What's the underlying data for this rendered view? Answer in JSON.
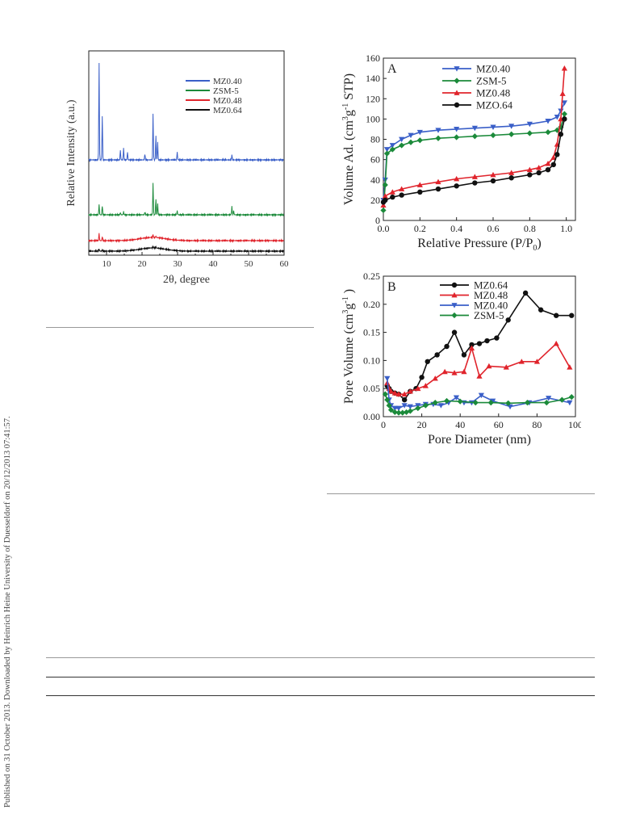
{
  "sidebar_note": "Published on 31 October 2013. Downloaded by Heinrich Heine University of Duesseldorf on 20/12/2013 07:41:57.",
  "figures": {
    "xrd": {
      "colors": {
        "MZ0.40": "#3a5fc8",
        "ZSM-5": "#1b8a3a",
        "MZ0.48": "#e0242c",
        "MZ0.64": "#111111"
      }
    },
    "iso_panel": "A",
    "pore_panel": "B"
  },
  "chart_data": [
    {
      "type": "line",
      "xlabel": "2θ, degree",
      "ylabel": "Relative Intensity (a.u.)",
      "xlim": [
        5,
        60
      ],
      "x_ticks": [
        "10",
        "20",
        "30",
        "40",
        "50",
        "60"
      ],
      "legend_position": "top-right",
      "series": [
        {
          "name": "MZ0.40",
          "color": "#3a5fc8",
          "peaks": [
            [
              7.9,
              1.0
            ],
            [
              8.8,
              0.45
            ],
            [
              13.9,
              0.1
            ],
            [
              14.8,
              0.12
            ],
            [
              15.9,
              0.08
            ],
            [
              20.8,
              0.06
            ],
            [
              23.1,
              0.47
            ],
            [
              23.9,
              0.25
            ],
            [
              24.4,
              0.18
            ],
            [
              29.9,
              0.08
            ],
            [
              45.3,
              0.05
            ]
          ]
        },
        {
          "name": "ZSM-5",
          "color": "#1b8a3a",
          "peaks": [
            [
              7.9,
              0.18
            ],
            [
              8.8,
              0.16
            ],
            [
              13.9,
              0.04
            ],
            [
              14.8,
              0.05
            ],
            [
              20.8,
              0.05
            ],
            [
              23.1,
              0.55
            ],
            [
              23.9,
              0.28
            ],
            [
              24.4,
              0.2
            ],
            [
              29.9,
              0.07
            ],
            [
              45.3,
              0.14
            ],
            [
              45.8,
              0.07
            ]
          ]
        },
        {
          "name": "MZ0.48",
          "color": "#e0242c",
          "peaks": [
            [
              7.9,
              0.18
            ],
            [
              8.8,
              0.1
            ],
            [
              23.1,
              0.07
            ],
            [
              23.9,
              0.04
            ]
          ]
        },
        {
          "name": "MZ0.64",
          "color": "#111111",
          "peaks": [
            [
              7.9,
              0.07
            ],
            [
              8.8,
              0.04
            ],
            [
              23.1,
              0.04
            ],
            [
              23.9,
              0.03
            ]
          ]
        }
      ]
    },
    {
      "type": "line",
      "panel": "A",
      "xlabel": "Relative Pressure (P/P",
      "xlabel_sub": "0",
      "xlabel_end": ")",
      "ylabel": "Volume Ad. (cm",
      "ylabel_sup": "3",
      "ylabel_mid": "g",
      "ylabel_sup2": "-1",
      "ylabel_end": "STP)",
      "xlim": [
        0.0,
        1.05
      ],
      "ylim": [
        0,
        160
      ],
      "x_ticks": [
        0.0,
        0.2,
        0.4,
        0.6,
        0.8,
        1.0
      ],
      "x_tick_labels": [
        "0.0",
        "0.2",
        "0.4",
        "0.6",
        "0.8",
        "1.0"
      ],
      "y_ticks": [
        0,
        20,
        40,
        60,
        80,
        100,
        120,
        140,
        160
      ],
      "legend_position": "top-center",
      "series": [
        {
          "name": "MZ0.40",
          "color": "#3a5fc8",
          "marker": "tri-down",
          "x": [
            0.0,
            0.01,
            0.02,
            0.05,
            0.1,
            0.15,
            0.2,
            0.3,
            0.4,
            0.5,
            0.6,
            0.7,
            0.8,
            0.9,
            0.95,
            0.97,
            0.99
          ],
          "y": [
            20,
            40,
            70,
            74,
            80,
            84,
            87,
            89,
            90,
            91,
            92,
            93,
            95,
            98,
            102,
            108,
            116
          ]
        },
        {
          "name": "ZSM-5",
          "color": "#1b8a3a",
          "marker": "diamond",
          "x": [
            0.0,
            0.01,
            0.02,
            0.05,
            0.1,
            0.15,
            0.2,
            0.3,
            0.4,
            0.5,
            0.6,
            0.7,
            0.8,
            0.9,
            0.95,
            0.97,
            0.99
          ],
          "y": [
            10,
            35,
            66,
            70,
            74,
            77,
            79,
            81,
            82,
            83,
            84,
            85,
            86,
            87,
            89,
            92,
            105
          ]
        },
        {
          "name": "MZ0.48",
          "color": "#e0242c",
          "marker": "tri-up",
          "x": [
            0.0,
            0.01,
            0.05,
            0.1,
            0.2,
            0.3,
            0.4,
            0.5,
            0.6,
            0.7,
            0.8,
            0.85,
            0.9,
            0.93,
            0.95,
            0.97,
            0.98,
            0.99
          ],
          "y": [
            15,
            24,
            28,
            31,
            35,
            38,
            41,
            43,
            45,
            47,
            50,
            52,
            56,
            62,
            75,
            100,
            125,
            150
          ]
        },
        {
          "name": "MZO.64",
          "color": "#111111",
          "marker": "circle",
          "x": [
            0.0,
            0.01,
            0.05,
            0.1,
            0.2,
            0.3,
            0.4,
            0.5,
            0.6,
            0.7,
            0.8,
            0.85,
            0.9,
            0.93,
            0.95,
            0.97,
            0.99
          ],
          "y": [
            18,
            20,
            23,
            25,
            28,
            31,
            34,
            37,
            39,
            42,
            45,
            47,
            50,
            55,
            65,
            85,
            100
          ]
        }
      ]
    },
    {
      "type": "line",
      "panel": "B",
      "xlabel": "Pore Diameter (nm)",
      "ylabel": "Pore Volume (cm",
      "ylabel_sup": "3",
      "ylabel_mid": "g",
      "ylabel_sup2": "-1",
      "ylabel_end": ")",
      "xlim": [
        0,
        100
      ],
      "ylim": [
        0,
        0.25
      ],
      "x_ticks": [
        0,
        20,
        40,
        60,
        80,
        100
      ],
      "y_ticks": [
        0.0,
        0.05,
        0.1,
        0.15,
        0.2,
        0.25
      ],
      "y_tick_labels": [
        "0.00",
        "0.05",
        "0.10",
        "0.15",
        "0.20",
        "0.25"
      ],
      "legend_position": "top-center",
      "series": [
        {
          "name": "MZ0.64",
          "color": "#111111",
          "marker": "circle",
          "x": [
            2,
            3,
            4,
            6,
            8,
            11,
            14,
            17,
            20,
            23,
            28,
            33,
            37,
            42,
            46,
            50,
            54,
            59,
            65,
            74,
            82,
            90,
            98
          ],
          "y": [
            0.055,
            0.05,
            0.045,
            0.042,
            0.04,
            0.03,
            0.045,
            0.05,
            0.07,
            0.098,
            0.11,
            0.125,
            0.15,
            0.11,
            0.128,
            0.13,
            0.135,
            0.14,
            0.172,
            0.22,
            0.19,
            0.18,
            0.18
          ]
        },
        {
          "name": "MZ0.48",
          "color": "#e0242c",
          "marker": "tri-up",
          "x": [
            2,
            3,
            4,
            6,
            8,
            11,
            14,
            18,
            22,
            27,
            32,
            37,
            42,
            46,
            50,
            55,
            64,
            72,
            80,
            90,
            97
          ],
          "y": [
            0.06,
            0.05,
            0.045,
            0.042,
            0.04,
            0.04,
            0.045,
            0.05,
            0.055,
            0.068,
            0.08,
            0.078,
            0.08,
            0.122,
            0.072,
            0.09,
            0.088,
            0.098,
            0.098,
            0.13,
            0.088
          ]
        },
        {
          "name": "MZ0.40",
          "color": "#3a5fc8",
          "marker": "tri-down",
          "x": [
            2,
            3,
            4,
            6,
            8,
            11,
            14,
            18,
            22,
            26,
            30,
            34,
            38,
            42,
            46,
            51,
            57,
            66,
            76,
            86,
            97
          ],
          "y": [
            0.068,
            0.03,
            0.02,
            0.015,
            0.015,
            0.02,
            0.018,
            0.02,
            0.022,
            0.022,
            0.02,
            0.025,
            0.034,
            0.025,
            0.025,
            0.038,
            0.028,
            0.018,
            0.025,
            0.033,
            0.025
          ]
        },
        {
          "name": "ZSM-5",
          "color": "#1b8a3a",
          "marker": "diamond",
          "x": [
            1,
            2,
            3,
            4,
            6,
            8,
            10,
            12,
            14,
            18,
            22,
            27,
            33,
            40,
            48,
            56,
            65,
            75,
            85,
            93,
            98
          ],
          "y": [
            0.04,
            0.03,
            0.02,
            0.012,
            0.008,
            0.007,
            0.007,
            0.008,
            0.01,
            0.015,
            0.02,
            0.025,
            0.028,
            0.027,
            0.025,
            0.025,
            0.024,
            0.025,
            0.025,
            0.03,
            0.035
          ]
        }
      ]
    }
  ]
}
